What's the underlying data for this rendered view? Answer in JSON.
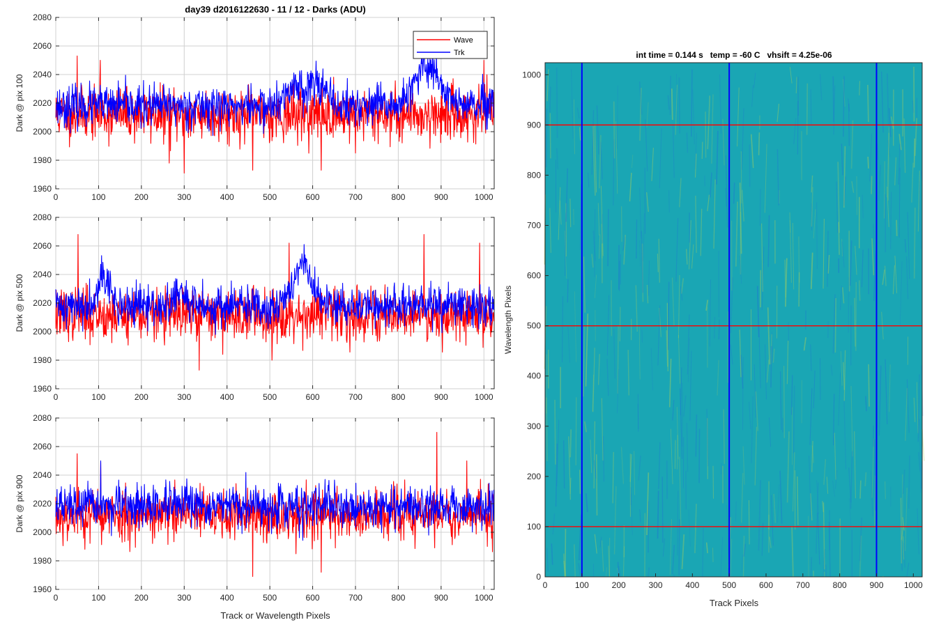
{
  "figure_title": "day39 d2016122630 - 11 / 12 - Darks (ADU)",
  "colors": {
    "wave": "#ff0000",
    "trk": "#0000ff",
    "grid": "#d0d0d0",
    "axis": "#262626",
    "image_base": "#1aa6b4",
    "image_high": "#a8d05a",
    "image_low": "#1f6fd6"
  },
  "chart_data": [
    {
      "type": "line",
      "title": "day39 d2016122630 - 11 / 12 - Darks (ADU)",
      "xlabel": "",
      "ylabel": "Dark @ pix 100",
      "xlim": [
        0,
        1024
      ],
      "ylim": [
        1960,
        2080
      ],
      "xticks": [
        0,
        100,
        200,
        300,
        400,
        500,
        600,
        700,
        800,
        900,
        1000
      ],
      "yticks": [
        1960,
        1980,
        2000,
        2020,
        2040,
        2060,
        2080
      ],
      "grid": true,
      "legend": "top-right",
      "series": [
        {
          "name": "Wave",
          "color": "#ff0000",
          "mean": 2012,
          "noise": 9,
          "seed": 11,
          "spikes": [
            [
              50,
              2053
            ],
            [
              104,
              2050
            ],
            [
              265,
              1978
            ],
            [
              300,
              1971
            ],
            [
              460,
              1973
            ],
            [
              620,
              1973
            ],
            [
              700,
              1985
            ],
            [
              1000,
              2050
            ]
          ],
          "bumps": []
        },
        {
          "name": "Trk",
          "color": "#0000ff",
          "mean": 2018,
          "noise": 7,
          "seed": 23,
          "spikes": [
            [
              880,
              2055
            ]
          ],
          "bumps": [
            [
              560,
              25,
              15
            ],
            [
              610,
              25,
              18
            ],
            [
              870,
              40,
              28
            ]
          ]
        }
      ]
    },
    {
      "type": "line",
      "title": "",
      "xlabel": "",
      "ylabel": "Dark @ pix 500",
      "xlim": [
        0,
        1024
      ],
      "ylim": [
        1960,
        2080
      ],
      "xticks": [
        0,
        100,
        200,
        300,
        400,
        500,
        600,
        700,
        800,
        900,
        1000
      ],
      "yticks": [
        1960,
        1980,
        2000,
        2020,
        2040,
        2060,
        2080
      ],
      "grid": true,
      "series": [
        {
          "name": "Wave",
          "color": "#ff0000",
          "mean": 2012,
          "noise": 9,
          "seed": 37,
          "spikes": [
            [
              52,
              2068
            ],
            [
              335,
              1973
            ],
            [
              505,
              1980
            ],
            [
              545,
              2062
            ],
            [
              860,
              2068
            ],
            [
              990,
              2062
            ]
          ],
          "bumps": []
        },
        {
          "name": "Trk",
          "color": "#0000ff",
          "mean": 2018,
          "noise": 7,
          "seed": 41,
          "spikes": [
            [
              580,
              2061
            ]
          ],
          "bumps": [
            [
              110,
              20,
              22
            ],
            [
              575,
              30,
              28
            ],
            [
              290,
              15,
              10
            ]
          ]
        }
      ]
    },
    {
      "type": "line",
      "title": "",
      "xlabel": "Track or Wavelength Pixels",
      "ylabel": "Dark @ pix 900",
      "xlim": [
        0,
        1024
      ],
      "ylim": [
        1960,
        2080
      ],
      "xticks": [
        0,
        100,
        200,
        300,
        400,
        500,
        600,
        700,
        800,
        900,
        1000
      ],
      "yticks": [
        1960,
        1980,
        2000,
        2020,
        2040,
        2060,
        2080
      ],
      "grid": true,
      "series": [
        {
          "name": "Wave",
          "color": "#ff0000",
          "mean": 2012,
          "noise": 9,
          "seed": 53,
          "spikes": [
            [
              50,
              2055
            ],
            [
              105,
              2049
            ],
            [
              460,
              1969
            ],
            [
              620,
              1972
            ],
            [
              890,
              2070
            ],
            [
              960,
              2050
            ]
          ],
          "bumps": []
        },
        {
          "name": "Trk",
          "color": "#0000ff",
          "mean": 2018,
          "noise": 7,
          "seed": 67,
          "spikes": [
            [
              105,
              2050
            ]
          ],
          "bumps": []
        }
      ]
    },
    {
      "type": "heatmap",
      "title": "int time = 0.144 s   temp = -60 C   vhsift = 4.25e-06",
      "xlabel": "Track Pixels",
      "ylabel": "Wavelength Pixels",
      "xlim": [
        0,
        1024
      ],
      "ylim": [
        0,
        1024
      ],
      "xticks": [
        0,
        100,
        200,
        300,
        400,
        500,
        600,
        700,
        800,
        900,
        1000
      ],
      "yticks": [
        0,
        100,
        200,
        300,
        400,
        500,
        600,
        700,
        800,
        900,
        1000
      ],
      "vlines": [
        100,
        500,
        900
      ],
      "hlines": [
        100,
        500,
        900
      ],
      "vline_color": "#0000ff",
      "hline_color": "#ff0000"
    }
  ]
}
